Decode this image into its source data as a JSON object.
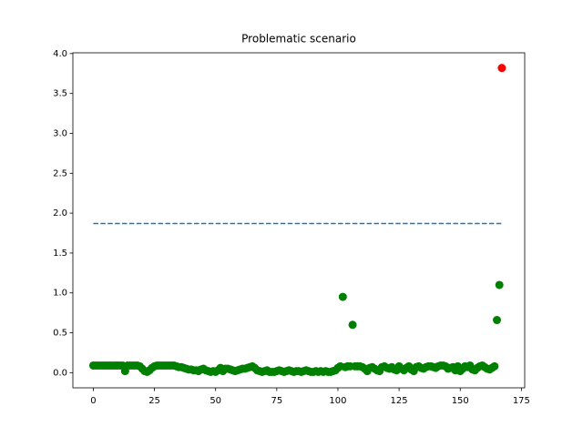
{
  "chart_data": {
    "type": "scatter",
    "title": "Problematic scenario",
    "xlim": [
      -8.35,
      176.35
    ],
    "xticks": [
      0,
      25,
      50,
      75,
      100,
      125,
      150,
      175
    ],
    "ylim": [
      -0.19,
      4.01
    ],
    "yticks": [
      {
        "value": 0,
        "label": "0.0"
      },
      0.5,
      {
        "value": 1,
        "label": "1.0"
      },
      1.5,
      {
        "value": 2,
        "label": "2.0"
      },
      2.5,
      {
        "value": 3,
        "label": "3.0"
      },
      3.5,
      {
        "value": 4,
        "label": "4.0"
      }
    ],
    "series": [
      {
        "type": "line",
        "linestyle": "dashed",
        "color": "#1f77b4",
        "x": [
          0,
          167
        ],
        "values": [
          1.87,
          1.87
        ]
      },
      {
        "type": "scatter",
        "color": "#008000",
        "x": [
          0,
          1,
          2,
          3,
          4,
          5,
          6,
          7,
          8,
          9,
          10,
          11,
          12,
          13,
          14,
          15,
          16,
          17,
          18,
          19,
          20,
          21,
          22,
          23,
          24,
          25,
          26,
          27,
          28,
          29,
          30,
          31,
          32,
          33,
          34,
          35,
          36,
          37,
          38,
          39,
          40,
          41,
          42,
          43,
          44,
          45,
          46,
          47,
          48,
          49,
          50,
          51,
          52,
          53,
          54,
          55,
          56,
          57,
          58,
          59,
          60,
          61,
          62,
          63,
          64,
          65,
          66,
          67,
          68,
          69,
          70,
          71,
          72,
          73,
          74,
          75,
          76,
          77,
          78,
          79,
          80,
          81,
          82,
          83,
          84,
          85,
          86,
          87,
          88,
          89,
          90,
          91,
          92,
          93,
          94,
          95,
          96,
          97,
          98,
          99,
          100,
          101,
          102,
          103,
          104,
          105,
          106,
          107,
          108,
          109,
          110,
          111,
          112,
          113,
          114,
          115,
          116,
          117,
          118,
          119,
          120,
          121,
          122,
          123,
          124,
          125,
          126,
          127,
          128,
          129,
          130,
          131,
          132,
          133,
          134,
          135,
          136,
          137,
          138,
          139,
          140,
          141,
          142,
          143,
          144,
          145,
          146,
          147,
          148,
          149,
          150,
          151,
          152,
          153,
          154,
          155,
          156,
          157,
          158,
          159,
          160,
          161,
          162,
          163,
          164,
          165,
          166
        ],
        "values": [
          0.09,
          0.09,
          0.09,
          0.09,
          0.09,
          0.09,
          0.09,
          0.09,
          0.09,
          0.09,
          0.09,
          0.09,
          0.09,
          0.02,
          0.09,
          0.09,
          0.09,
          0.09,
          0.09,
          0.08,
          0.05,
          0.02,
          0.01,
          0.03,
          0.06,
          0.08,
          0.09,
          0.09,
          0.09,
          0.09,
          0.09,
          0.09,
          0.09,
          0.09,
          0.08,
          0.07,
          0.07,
          0.06,
          0.05,
          0.04,
          0.04,
          0.03,
          0.03,
          0.02,
          0.04,
          0.05,
          0.03,
          0.02,
          0.01,
          0.02,
          0.01,
          0.03,
          0.06,
          0.02,
          0.05,
          0.05,
          0.04,
          0.03,
          0.02,
          0.03,
          0.04,
          0.05,
          0.05,
          0.06,
          0.07,
          0.08,
          0.06,
          0.03,
          0.02,
          0.01,
          0.02,
          0.03,
          0.01,
          0.01,
          0.01,
          0.02,
          0.03,
          0.02,
          0.01,
          0.02,
          0.03,
          0.02,
          0.01,
          0.02,
          0.02,
          0.01,
          0.02,
          0.03,
          0.02,
          0.01,
          0.01,
          0.02,
          0.01,
          0.02,
          0.01,
          0.02,
          0.01,
          0.01,
          0.02,
          0.03,
          0.06,
          0.08,
          0.95,
          0.07,
          0.08,
          0.08,
          0.6,
          0.08,
          0.08,
          0.08,
          0.07,
          0.05,
          0.02,
          0.06,
          0.07,
          0.05,
          0.03,
          0.02,
          0.07,
          0.08,
          0.06,
          0.05,
          0.07,
          0.04,
          0.03,
          0.08,
          0.05,
          0.03,
          0.06,
          0.08,
          0.04,
          0.02,
          0.07,
          0.08,
          0.06,
          0.05,
          0.07,
          0.08,
          0.08,
          0.07,
          0.06,
          0.08,
          0.09,
          0.09,
          0.08,
          0.05,
          0.06,
          0.07,
          0.03,
          0.08,
          0.02,
          0.05,
          0.08,
          0.07,
          0.09,
          0.04,
          0.03,
          0.06,
          0.08,
          0.09,
          0.07,
          0.05,
          0.04,
          0.06,
          0.08,
          0.66,
          1.1
        ]
      },
      {
        "type": "scatter",
        "color": "#ff0000",
        "x": [
          167
        ],
        "values": [
          3.82
        ]
      }
    ]
  }
}
